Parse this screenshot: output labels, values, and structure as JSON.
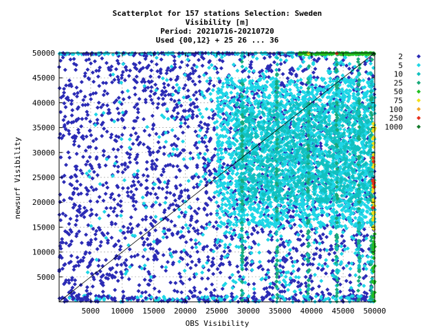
{
  "chart_data": {
    "type": "scatter",
    "title_lines": [
      "Scatterplot for  157 stations Selection: Sweden",
      "Visibility [m]",
      "Period: 20210716-20210720",
      "Used {00,12} + 25 26 ... 36"
    ],
    "xlabel": "OBS Visibility",
    "ylabel": "newsurf Visibility",
    "xlim": [
      0,
      50000
    ],
    "ylim": [
      0,
      50000
    ],
    "xticks": [
      "5000",
      "10000",
      "15000",
      "20000",
      "25000",
      "30000",
      "35000",
      "40000",
      "45000",
      "50000"
    ],
    "yticks": [
      "5000",
      "10000",
      "15000",
      "20000",
      "25000",
      "30000",
      "35000",
      "40000",
      "45000",
      "50000"
    ],
    "grid": true,
    "diagonal": true,
    "legend_placement": "right",
    "legend": [
      {
        "label": "2",
        "color": "#2b2bb5"
      },
      {
        "label": "5",
        "color": "#1ed6e6"
      },
      {
        "label": "10",
        "color": "#12c0bf"
      },
      {
        "label": "25",
        "color": "#1aaa7a"
      },
      {
        "label": "50",
        "color": "#22c022"
      },
      {
        "label": "75",
        "color": "#f2e21a"
      },
      {
        "label": "100",
        "color": "#f5a623"
      },
      {
        "label": "250",
        "color": "#e8301c"
      },
      {
        "label": "1000",
        "color": "#157a2a"
      }
    ]
  }
}
